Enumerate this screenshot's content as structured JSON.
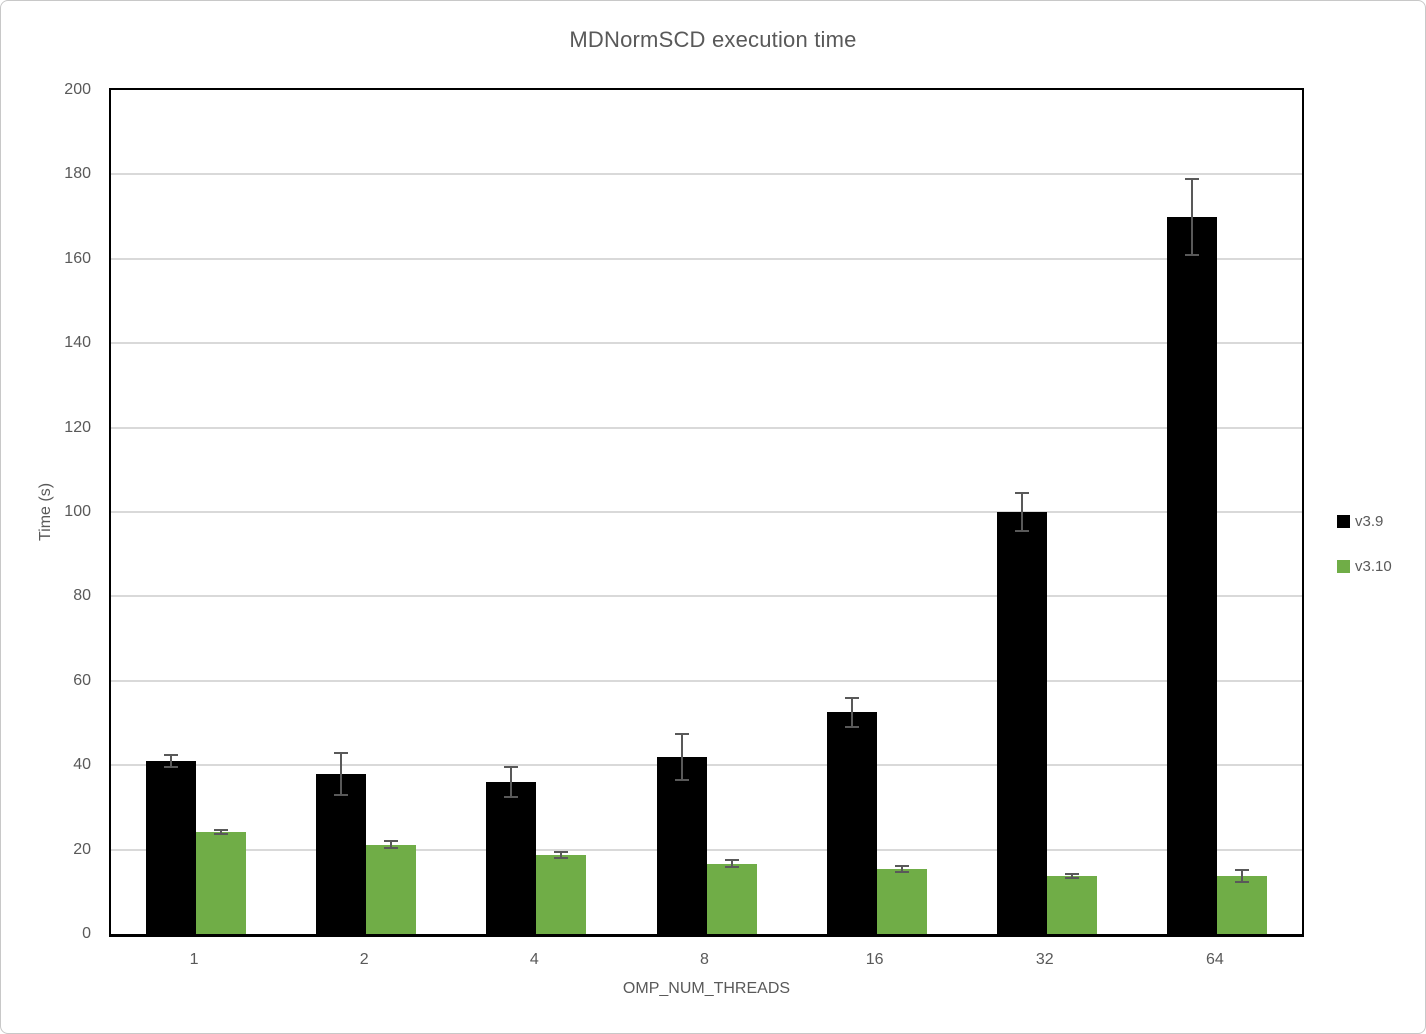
{
  "window": {
    "background": "#ffffff",
    "frame_border": "#c8c8c8"
  },
  "chart_data": {
    "type": "bar",
    "title": "MDNormSCD execution time",
    "xlabel": "OMP_NUM_THREADS",
    "ylabel": "Time (s)",
    "ylim": [
      0,
      200
    ],
    "ytick_step": 20,
    "grid": true,
    "legend_position": "right",
    "categories": [
      "1",
      "2",
      "4",
      "8",
      "16",
      "32",
      "64"
    ],
    "series": [
      {
        "name": "v3.9",
        "color": "#000000",
        "values": [
          41,
          38,
          36,
          42,
          52.5,
          100,
          170
        ],
        "errors": [
          1.5,
          5,
          3.5,
          5.5,
          3.5,
          4.5,
          9
        ]
      },
      {
        "name": "v3.10",
        "color": "#70AD47",
        "values": [
          24.2,
          21.2,
          18.8,
          16.7,
          15.5,
          13.7,
          13.8
        ],
        "errors": [
          0.4,
          0.9,
          0.7,
          0.8,
          0.7,
          0.5,
          1.4
        ]
      }
    ],
    "colors": {
      "gridline": "#D9D9D9",
      "error_bar": "#595959",
      "axis_text": "#595959",
      "plot_border": "#000000"
    }
  }
}
